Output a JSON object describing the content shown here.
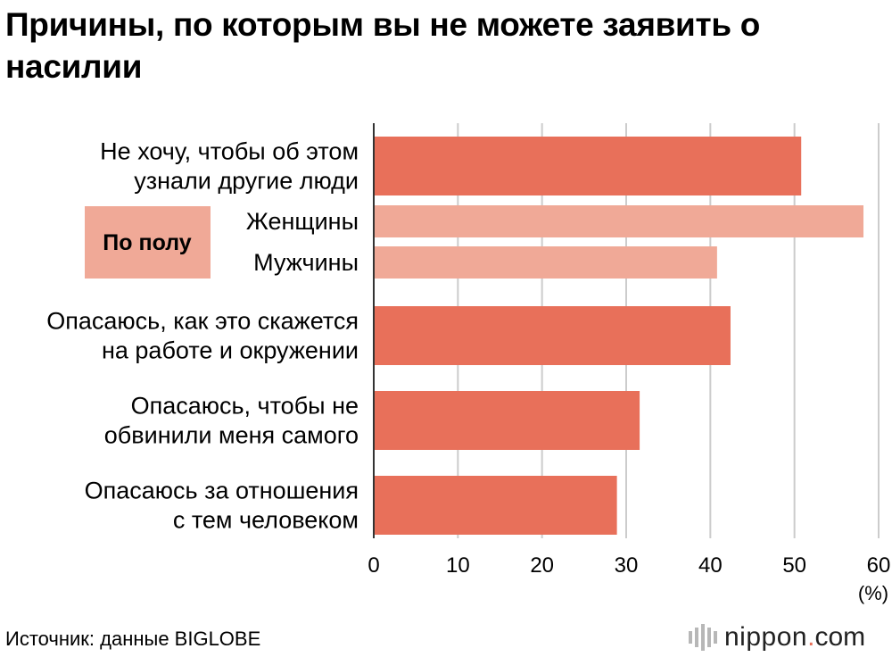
{
  "title": "Причины, по которым вы не можете заявить о насилии",
  "source": "Источник: данные BIGLOBE",
  "brand": {
    "name": "nippon",
    "dot": ".",
    "suffix": "com"
  },
  "colors": {
    "primary": "#e8705a",
    "secondary": "#f0a997",
    "grid": "#cccccc",
    "axis": "#333333"
  },
  "chart_data": {
    "type": "bar",
    "orientation": "horizontal",
    "xlim": [
      0,
      60
    ],
    "xticks": [
      "0",
      "10",
      "20",
      "30",
      "40",
      "50",
      "60"
    ],
    "unit": "(%)",
    "group_label": "По полу",
    "categories": [
      {
        "label": [
          "Не хочу, чтобы об этом",
          "узнали другие люди"
        ],
        "value": 50.8,
        "style": "primary"
      },
      {
        "label": [
          "Женщины"
        ],
        "value": 58.2,
        "style": "secondary"
      },
      {
        "label": [
          "Мужчины"
        ],
        "value": 40.8,
        "style": "secondary"
      },
      {
        "label": [
          "Опасаюсь, как это скажется",
          "на работе и окружении"
        ],
        "value": 42.4,
        "style": "primary"
      },
      {
        "label": [
          "Опасаюсь, чтобы не",
          "обвинили меня самого"
        ],
        "value": 31.6,
        "style": "primary"
      },
      {
        "label": [
          "Опасаюсь за отношения",
          "с тем человеком"
        ],
        "value": 28.9,
        "style": "primary"
      }
    ]
  }
}
